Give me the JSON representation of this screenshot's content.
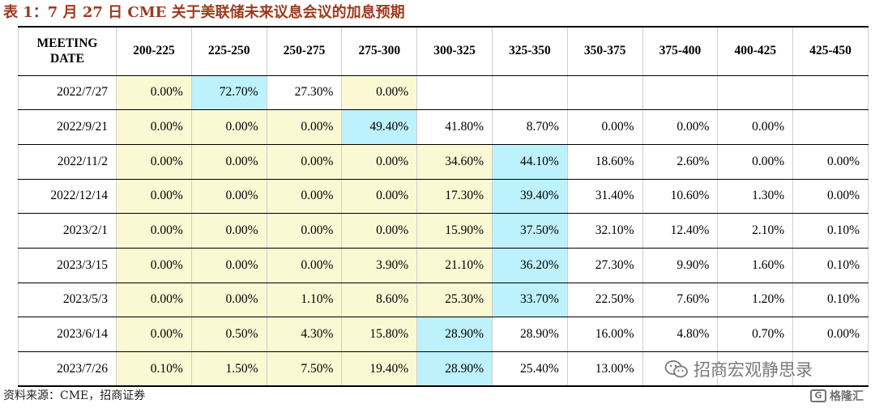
{
  "title": "表 1：7 月 27 日 CME 关于美联储未来议息会议的加息预期",
  "table": {
    "date_header_line1": "MEETING",
    "date_header_line2": "DATE",
    "headers": [
      "200-225",
      "225-250",
      "250-275",
      "275-300",
      "300-325",
      "325-350",
      "350-375",
      "375-400",
      "400-425",
      "425-450"
    ],
    "rows": [
      {
        "date": "2022/7/27",
        "cells": [
          "0.00%",
          "72.70%",
          "27.30%",
          "0.00%",
          "",
          "",
          "",
          "",
          "",
          ""
        ]
      },
      {
        "date": "2022/9/21",
        "cells": [
          "0.00%",
          "0.00%",
          "0.00%",
          "49.40%",
          "41.80%",
          "8.70%",
          "0.00%",
          "0.00%",
          "0.00%",
          ""
        ]
      },
      {
        "date": "2022/11/2",
        "cells": [
          "0.00%",
          "0.00%",
          "0.00%",
          "0.00%",
          "34.60%",
          "44.10%",
          "18.60%",
          "2.60%",
          "0.00%",
          "0.00%"
        ]
      },
      {
        "date": "2022/12/14",
        "cells": [
          "0.00%",
          "0.00%",
          "0.00%",
          "0.00%",
          "17.30%",
          "39.40%",
          "31.40%",
          "10.60%",
          "1.30%",
          "0.00%"
        ]
      },
      {
        "date": "2023/2/1",
        "cells": [
          "0.00%",
          "0.00%",
          "0.00%",
          "0.00%",
          "15.90%",
          "37.50%",
          "32.10%",
          "12.40%",
          "2.10%",
          "0.10%"
        ]
      },
      {
        "date": "2023/3/15",
        "cells": [
          "0.00%",
          "0.00%",
          "0.00%",
          "3.90%",
          "21.10%",
          "36.20%",
          "27.30%",
          "9.90%",
          "1.60%",
          "0.10%"
        ]
      },
      {
        "date": "2023/5/3",
        "cells": [
          "0.00%",
          "0.00%",
          "1.10%",
          "8.60%",
          "25.30%",
          "33.70%",
          "22.50%",
          "7.60%",
          "1.20%",
          "0.10%"
        ]
      },
      {
        "date": "2023/6/14",
        "cells": [
          "0.00%",
          "0.50%",
          "4.30%",
          "15.80%",
          "28.90%",
          "28.90%",
          "16.00%",
          "4.80%",
          "0.70%",
          "0.00%"
        ]
      },
      {
        "date": "2023/7/26",
        "cells": [
          "0.10%",
          "1.50%",
          "7.50%",
          "19.40%",
          "28.90%",
          "25.40%",
          "13.00%",
          "",
          "",
          ""
        ]
      }
    ],
    "highlight": [
      [
        "y",
        "b",
        "",
        "y",
        "",
        "",
        "",
        "",
        "",
        ""
      ],
      [
        "y",
        "y",
        "y",
        "b",
        "",
        "",
        "",
        "",
        "",
        ""
      ],
      [
        "y",
        "y",
        "y",
        "y",
        "y",
        "b",
        "",
        "",
        "",
        ""
      ],
      [
        "y",
        "y",
        "y",
        "y",
        "y",
        "b",
        "",
        "",
        "",
        ""
      ],
      [
        "y",
        "y",
        "y",
        "y",
        "y",
        "b",
        "",
        "",
        "",
        ""
      ],
      [
        "y",
        "y",
        "y",
        "y",
        "y",
        "b",
        "",
        "",
        "",
        ""
      ],
      [
        "y",
        "y",
        "y",
        "y",
        "y",
        "b",
        "",
        "",
        "",
        ""
      ],
      [
        "y",
        "y",
        "y",
        "y",
        "b",
        "",
        "",
        "",
        "",
        ""
      ],
      [
        "y",
        "y",
        "y",
        "y",
        "b",
        "",
        "",
        "",
        "",
        ""
      ]
    ],
    "colors": {
      "yellow": "#fbf8d4",
      "blue": "#bdf1fb",
      "title": "#9e3a1d"
    }
  },
  "source": "资料来源：CME，招商证券",
  "watermark": {
    "text": "招商宏观静思录",
    "icon": "wechat-icon"
  },
  "logo": {
    "text": "格隆汇",
    "badge": "G"
  }
}
